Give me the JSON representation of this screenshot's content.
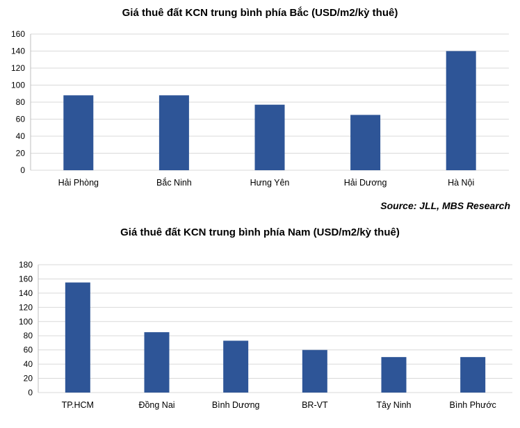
{
  "source": "Source:  JLL, MBS Research",
  "bar_color": "#2e5597",
  "grid_color": "#d9d9d9",
  "chart_data": [
    {
      "type": "bar",
      "title": "Giá thuê đất KCN trung bình phía Bắc (USD/m2/kỳ thuê)",
      "categories": [
        "Hải Phòng",
        "Bắc Ninh",
        "Hưng Yên",
        "Hải Dương",
        "Hà Nội"
      ],
      "values": [
        88,
        88,
        77,
        65,
        140
      ],
      "ylim": [
        0,
        160
      ],
      "yticks": [
        0,
        20,
        40,
        60,
        80,
        100,
        120,
        140,
        160
      ],
      "grid": true,
      "legend": "none"
    },
    {
      "type": "bar",
      "title": "Giá thuê đất KCN trung bình phía Nam (USD/m2/kỳ thuê)",
      "categories": [
        "TP.HCM",
        "Đồng Nai",
        "Bình Dương",
        "BR-VT",
        "Tây Ninh",
        "Bình Phước"
      ],
      "values": [
        155,
        85,
        73,
        60,
        50,
        50
      ],
      "ylim": [
        0,
        180
      ],
      "yticks": [
        0,
        20,
        40,
        60,
        80,
        100,
        120,
        140,
        160,
        180
      ],
      "grid": true,
      "legend": "none"
    }
  ]
}
